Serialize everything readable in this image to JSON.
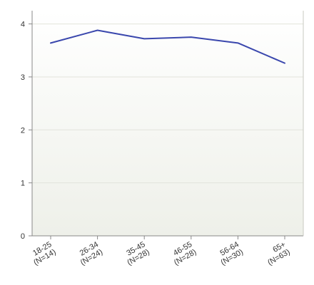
{
  "chart_data": {
    "type": "line",
    "categories": [
      [
        "18-25",
        "(N=14)"
      ],
      [
        "26-34",
        "(N=24)"
      ],
      [
        "35-45",
        "(N=28)"
      ],
      [
        "46-55",
        "(N=28)"
      ],
      [
        "56-64",
        "(N=30)"
      ],
      [
        "65+",
        "(N=63)"
      ]
    ],
    "series": [
      {
        "values": [
          3.64,
          3.88,
          3.72,
          3.75,
          3.64,
          3.26
        ],
        "color": "#3a47ad"
      }
    ],
    "ylim": [
      0,
      4.25
    ],
    "yticks": [
      0,
      1,
      2,
      3,
      4
    ],
    "title": "",
    "xlabel": "",
    "ylabel": "",
    "grid": true,
    "background_top": "#ffffff",
    "background_bottom": "#eef0e9"
  }
}
